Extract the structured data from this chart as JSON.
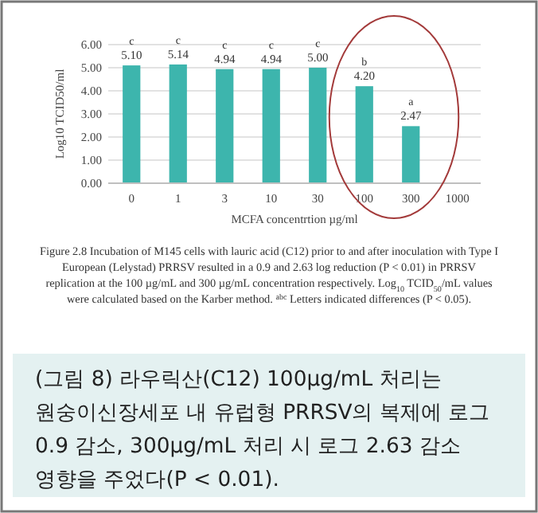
{
  "chart_data": {
    "type": "bar",
    "ylabel": "Log10 TCID50/ml",
    "xlabel": "MCFA concentrtion µg/ml",
    "categories": [
      "0",
      "1",
      "3",
      "10",
      "30",
      "100",
      "300",
      "1000"
    ],
    "values": [
      5.1,
      5.14,
      4.94,
      4.94,
      5.0,
      4.2,
      2.47,
      null
    ],
    "value_labels": [
      "5.10",
      "5.14",
      "4.94",
      "4.94",
      "5.00",
      "4.20",
      "2.47",
      null
    ],
    "color": "#3db5ad",
    "ylim": [
      0,
      6
    ],
    "yticks": [
      {
        "value": 0,
        "label": "0.00"
      },
      {
        "value": 1,
        "label": "1.00"
      },
      {
        "value": 2,
        "label": "2.00"
      },
      {
        "value": 3,
        "label": "3.00"
      },
      {
        "value": 4,
        "label": "4.00"
      },
      {
        "value": 5,
        "label": "5.00"
      },
      {
        "value": 6,
        "label": "6.00"
      }
    ],
    "grid": "y",
    "annotations": [
      {
        "text": "c",
        "x": "0",
        "y": 5.1
      },
      {
        "text": "c",
        "x": "1",
        "y": 5.14
      },
      {
        "text": "c",
        "x": "3",
        "y": 4.94
      },
      {
        "text": "c",
        "x": "10",
        "y": 4.94
      },
      {
        "text": "c",
        "x": "30",
        "y": 5.0
      },
      {
        "text": "b",
        "x": "100",
        "y": 4.2
      },
      {
        "text": "a",
        "x": "300",
        "y": 2.47
      },
      "Figure 2.8 Incubation of M145 cells with lauric acid (C12) prior to and after inoculation with Type I European (Lelystad) PRRSV resulted in a 0.9 and 2.63 log reduction (P < 0.01) in PRRSV replication at the 100 µg/mL and 300 µg/mL concentration respectively. Log$_{10}$ TCID$_{50}$/mL values were calculated based on the Karber method. $^{abc}$ Letters indicated differences (P < 0.05).",
      "(그림 8) 라우릭산(C12) 100µg/mL 처리는 원숭이신장세포 내 유럽형 PRRSV의 복제에 로그 0.9 감소, 300µg/mL 처리 시 로그 2.63 감소 영향을 주었다(P < 0.01)."
    ]
  }
}
